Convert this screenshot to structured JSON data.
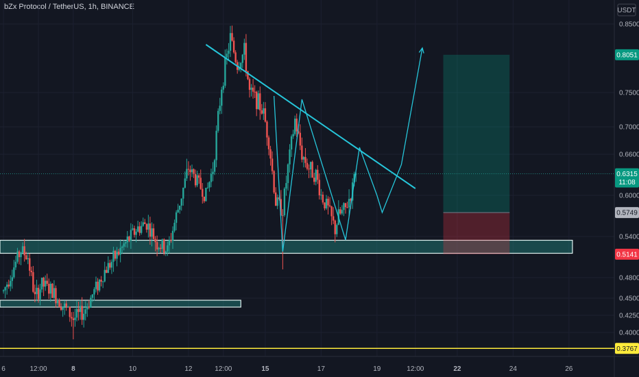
{
  "header": {
    "title": "bZx Protocol / TetherUS, 1h, BINANCE"
  },
  "axis": {
    "currency": "USDT"
  },
  "chart_data": {
    "type": "candlestick",
    "title": "bZx Protocol / TetherUS, 1h, BINANCE",
    "ylim": [
      0.365,
      0.885
    ],
    "y_ticks": [
      "0.8500",
      "0.7500",
      "0.7000",
      "0.6600",
      "0.6000",
      "0.5400",
      "0.4800",
      "0.4500",
      "0.4250",
      "0.4000"
    ],
    "y_tick_values": [
      0.85,
      0.75,
      0.7,
      0.66,
      0.6,
      0.54,
      0.48,
      0.45,
      0.425,
      0.4
    ],
    "x_ticks": [
      {
        "label": "6",
        "pos": 0.0,
        "bold": false
      },
      {
        "label": "12:00",
        "pos": 1.0,
        "bold": false
      },
      {
        "label": "8",
        "pos": 2.0,
        "bold": true
      },
      {
        "label": "10",
        "pos": 3.7,
        "bold": false
      },
      {
        "label": "12",
        "pos": 5.3,
        "bold": false
      },
      {
        "label": "12:00",
        "pos": 6.3,
        "bold": false
      },
      {
        "label": "15",
        "pos": 7.5,
        "bold": true
      },
      {
        "label": "17",
        "pos": 9.1,
        "bold": false
      },
      {
        "label": "19",
        "pos": 10.7,
        "bold": false
      },
      {
        "label": "12:00",
        "pos": 11.8,
        "bold": false
      },
      {
        "label": "22",
        "pos": 13.0,
        "bold": true
      },
      {
        "label": "24",
        "pos": 14.6,
        "bold": false
      },
      {
        "label": "26",
        "pos": 16.2,
        "bold": false
      }
    ],
    "x_range": [
      -0.1,
      17.5
    ],
    "price_tags": [
      {
        "label": "0.8051",
        "value": 0.8051,
        "bg": "#089981",
        "fg": "#ffffff"
      },
      {
        "label": "0.6315",
        "value": 0.6315,
        "bg": "#089981",
        "fg": "#ffffff"
      },
      {
        "label": "11:08",
        "value": 0.6195,
        "bg": "#089981",
        "fg": "#ffffff"
      },
      {
        "label": "0.5749",
        "value": 0.5749,
        "bg": "#b2b5be",
        "fg": "#131722"
      },
      {
        "label": "0.5141",
        "value": 0.5141,
        "bg": "#f23645",
        "fg": "#ffffff"
      },
      {
        "label": "0.3767",
        "value": 0.3767,
        "bg": "#ffeb3b",
        "fg": "#131722"
      }
    ],
    "current_price": 0.6315,
    "anchors": [
      [
        0.0,
        0.46
      ],
      [
        0.25,
        0.49
      ],
      [
        0.5,
        0.52
      ],
      [
        0.7,
        0.51
      ],
      [
        0.9,
        0.45
      ],
      [
        1.1,
        0.47
      ],
      [
        1.4,
        0.46
      ],
      [
        1.7,
        0.44
      ],
      [
        2.0,
        0.42
      ],
      [
        2.3,
        0.43
      ],
      [
        2.6,
        0.46
      ],
      [
        2.9,
        0.49
      ],
      [
        3.2,
        0.51
      ],
      [
        3.5,
        0.53
      ],
      [
        3.8,
        0.55
      ],
      [
        4.1,
        0.56
      ],
      [
        4.4,
        0.53
      ],
      [
        4.7,
        0.52
      ],
      [
        5.0,
        0.58
      ],
      [
        5.3,
        0.64
      ],
      [
        5.55,
        0.62
      ],
      [
        5.8,
        0.6
      ],
      [
        6.0,
        0.64
      ],
      [
        6.25,
        0.76
      ],
      [
        6.5,
        0.83
      ],
      [
        6.7,
        0.79
      ],
      [
        6.9,
        0.81
      ],
      [
        7.05,
        0.75
      ],
      [
        7.25,
        0.74
      ],
      [
        7.45,
        0.72
      ],
      [
        7.6,
        0.68
      ],
      [
        7.8,
        0.59
      ],
      [
        8.0,
        0.58
      ],
      [
        8.15,
        0.64
      ],
      [
        8.35,
        0.71
      ],
      [
        8.55,
        0.66
      ],
      [
        8.75,
        0.64
      ],
      [
        8.95,
        0.63
      ],
      [
        9.1,
        0.6
      ],
      [
        9.3,
        0.58
      ],
      [
        9.5,
        0.55
      ],
      [
        9.6,
        0.57
      ],
      [
        9.8,
        0.58
      ],
      [
        10.0,
        0.61
      ],
      [
        10.1,
        0.6315
      ]
    ],
    "drawings": {
      "trendline": {
        "x": [
          5.8,
          11.8
        ],
        "y": [
          0.82,
          0.61
        ]
      },
      "zigzag": [
        [
          7.75,
          0.745
        ],
        [
          8.0,
          0.518
        ],
        [
          8.55,
          0.74
        ],
        [
          9.8,
          0.535
        ],
        [
          10.2,
          0.67
        ],
        [
          10.7,
          0.6,
          0
        ],
        [
          10.85,
          0.575
        ],
        [
          11.4,
          0.645
        ],
        [
          12.0,
          0.815
        ]
      ],
      "zones": [
        {
          "x": [
            -0.1,
            16.3
          ],
          "y": [
            0.5155,
            0.5345
          ]
        },
        {
          "x": [
            -0.1,
            6.8
          ],
          "y": [
            0.437,
            0.447
          ]
        }
      ],
      "yellow_line": 0.3767,
      "position": {
        "x": [
          12.6,
          14.5
        ],
        "entry": 0.5749,
        "target": 0.8051,
        "stop": 0.5141
      }
    }
  }
}
